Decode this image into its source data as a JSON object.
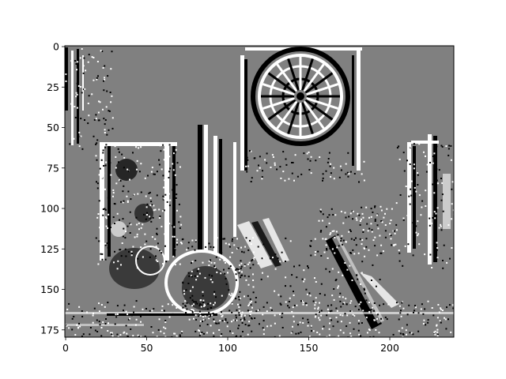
{
  "chart_data": {
    "type": "heatmap",
    "title": "",
    "xlabel": "",
    "ylabel": "",
    "image_shape": [
      180,
      240
    ],
    "xlim": [
      -0.5,
      239.5
    ],
    "ylim": [
      179.5,
      -0.5
    ],
    "x_ticks": [
      0,
      50,
      100,
      150,
      200
    ],
    "y_ticks": [
      0,
      25,
      50,
      75,
      100,
      125,
      150,
      175
    ],
    "x_tick_labels": [
      "0",
      "50",
      "100",
      "150",
      "200"
    ],
    "y_tick_labels": [
      "0",
      "25",
      "50",
      "75",
      "100",
      "125",
      "150",
      "175"
    ],
    "levels": [
      {
        "value": -1,
        "color": "#000000"
      },
      {
        "value": 0,
        "color": "#808080"
      },
      {
        "value": 1,
        "color": "#ffffff"
      }
    ],
    "background_level": 0,
    "colormap": "gray",
    "grid": false,
    "legend": "none",
    "description_of_content": "ternary edge/event map of an indoor scene with a dartboard, frames, a ball and a slanted stick"
  }
}
